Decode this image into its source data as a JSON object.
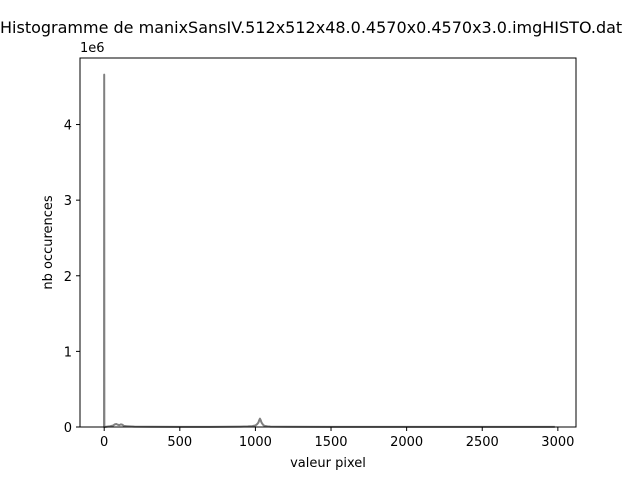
{
  "chart_data": {
    "type": "line",
    "title": "Histogramme de manixSansIV.512x512x48.0.4570x0.4570x3.0.imgHISTO.dat",
    "xlabel": "valeur pixel",
    "ylabel": "nb occurences",
    "y_offset_text": "1e6",
    "xlim": [
      -160,
      3120
    ],
    "ylim": [
      0,
      4.88
    ],
    "x_ticks": [
      0,
      500,
      1000,
      1500,
      2000,
      2500,
      3000
    ],
    "x_tick_labels": [
      "0",
      "500",
      "1000",
      "1500",
      "2000",
      "2500",
      "3000"
    ],
    "y_ticks": [
      0,
      1,
      2,
      3,
      4
    ],
    "y_tick_labels": [
      "0",
      "1",
      "2",
      "3",
      "4"
    ],
    "grid": false,
    "line_color": "#808080",
    "series": [
      {
        "x": [
          -5,
          -1,
          0,
          1,
          5,
          20,
          40,
          60,
          70,
          80,
          90,
          100,
          110,
          120,
          130,
          150,
          200,
          300,
          500,
          700,
          900,
          950,
          980,
          1000,
          1010,
          1020,
          1025,
          1030,
          1035,
          1040,
          1050,
          1060,
          1080,
          1100,
          1200,
          1500,
          2000,
          2500,
          2980
        ],
        "y": [
          0,
          0,
          4.66,
          0,
          0,
          0.005,
          0.01,
          0.02,
          0.035,
          0.04,
          0.03,
          0.025,
          0.035,
          0.03,
          0.015,
          0.01,
          0.005,
          0.003,
          0.002,
          0.002,
          0.005,
          0.008,
          0.012,
          0.02,
          0.035,
          0.06,
          0.09,
          0.11,
          0.09,
          0.06,
          0.03,
          0.015,
          0.008,
          0.005,
          0.003,
          0.002,
          0.001,
          0.001,
          0.001
        ]
      }
    ]
  }
}
